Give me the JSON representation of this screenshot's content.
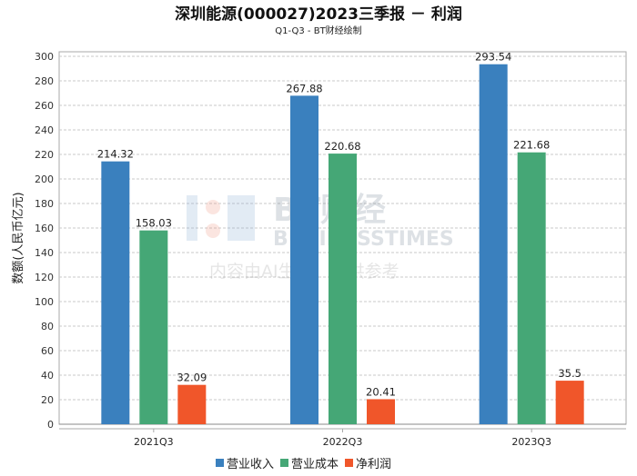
{
  "chart_data": {
    "type": "bar",
    "title": "深圳能源(000027)2023三季报 － 利润",
    "subtitle": "Q1-Q3 - BT财经绘制",
    "xlabel": "",
    "ylabel": "数额(人民币亿元)",
    "ylim": [
      0,
      300
    ],
    "yticks": [
      0,
      20,
      40,
      60,
      80,
      100,
      120,
      140,
      160,
      180,
      200,
      220,
      240,
      260,
      280,
      300
    ],
    "grid": true,
    "legend_position": "bottom",
    "categories": [
      "2021Q3",
      "2022Q3",
      "2023Q3"
    ],
    "series": [
      {
        "name": "营业收入",
        "color": "#3a80be",
        "values": [
          214.32,
          267.88,
          293.54
        ],
        "labels": [
          "214.32",
          "267.88",
          "293.54"
        ]
      },
      {
        "name": "营业成本",
        "color": "#45a776",
        "values": [
          158.03,
          220.68,
          221.68
        ],
        "labels": [
          "158.03",
          "220.68",
          "221.68"
        ]
      },
      {
        "name": "净利润",
        "color": "#f0562a",
        "values": [
          32.09,
          20.41,
          35.5
        ],
        "labels": [
          "32.09",
          "20.41",
          "35.5"
        ]
      }
    ]
  },
  "watermark": {
    "brand": "BT财经",
    "english": "BUSINESSTIMES",
    "notice": "内容由AI生成，仅供参考"
  }
}
